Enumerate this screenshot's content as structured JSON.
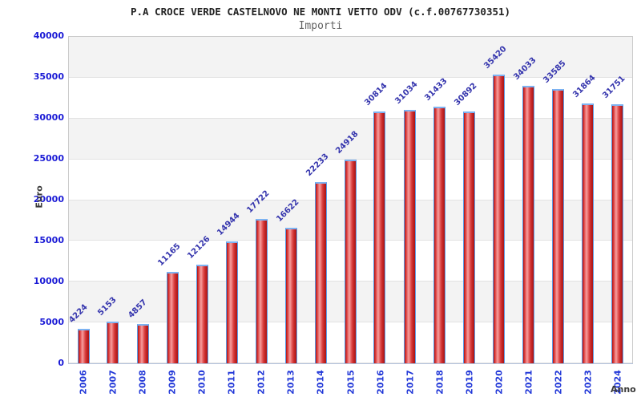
{
  "header": {
    "title": "P.A CROCE VERDE CASTELNOVO NE MONTI VETTO ODV (c.f.00767730351)",
    "subtitle": "Importi"
  },
  "chart_data": {
    "type": "bar",
    "title": "P.A CROCE VERDE CASTELNOVO NE MONTI VETTO ODV (c.f.00767730351)",
    "subtitle": "Importi",
    "xlabel": "Anno",
    "ylabel": "Euro",
    "categories": [
      "2006",
      "2007",
      "2008",
      "2009",
      "2010",
      "2011",
      "2012",
      "2013",
      "2014",
      "2015",
      "2016",
      "2017",
      "2018",
      "2019",
      "2020",
      "2021",
      "2022",
      "2023",
      "2024"
    ],
    "values": [
      4224,
      5153,
      4857,
      11165,
      12126,
      14944,
      17722,
      16622,
      22233,
      24918,
      30814,
      31034,
      31433,
      30892,
      35420,
      34033,
      33585,
      31864,
      31751
    ],
    "value_labels": [
      "4224",
      "5153",
      "4857",
      "11165",
      "12126",
      "14944",
      "17722",
      "16622",
      "22233",
      "24918",
      "30814",
      "31034",
      "31433",
      "30892",
      "35420",
      "34033",
      "33585",
      "31864",
      "31751"
    ],
    "ylim": [
      0,
      40000
    ],
    "ytick_step": 5000,
    "ytick_labels": [
      "0",
      "5000",
      "10000",
      "15000",
      "20000",
      "25000",
      "30000",
      "35000",
      "40000"
    ],
    "grid": "horizontal alternating bands, gray top band",
    "legend": "none",
    "colors": {
      "bar_fill_dark": "#a81616",
      "bar_fill_light": "#f6a0a0",
      "bar_border": "#5c9ce6",
      "value_label": "#3434ad",
      "axis_tick_label": "#1b1bd6",
      "year_label": "#2238d8",
      "band_gray": "#f3f3f3",
      "band_white": "#ffffff",
      "axis_title": "#3a3a3a",
      "title_text": "#222222",
      "subtitle_text": "#636363"
    }
  }
}
